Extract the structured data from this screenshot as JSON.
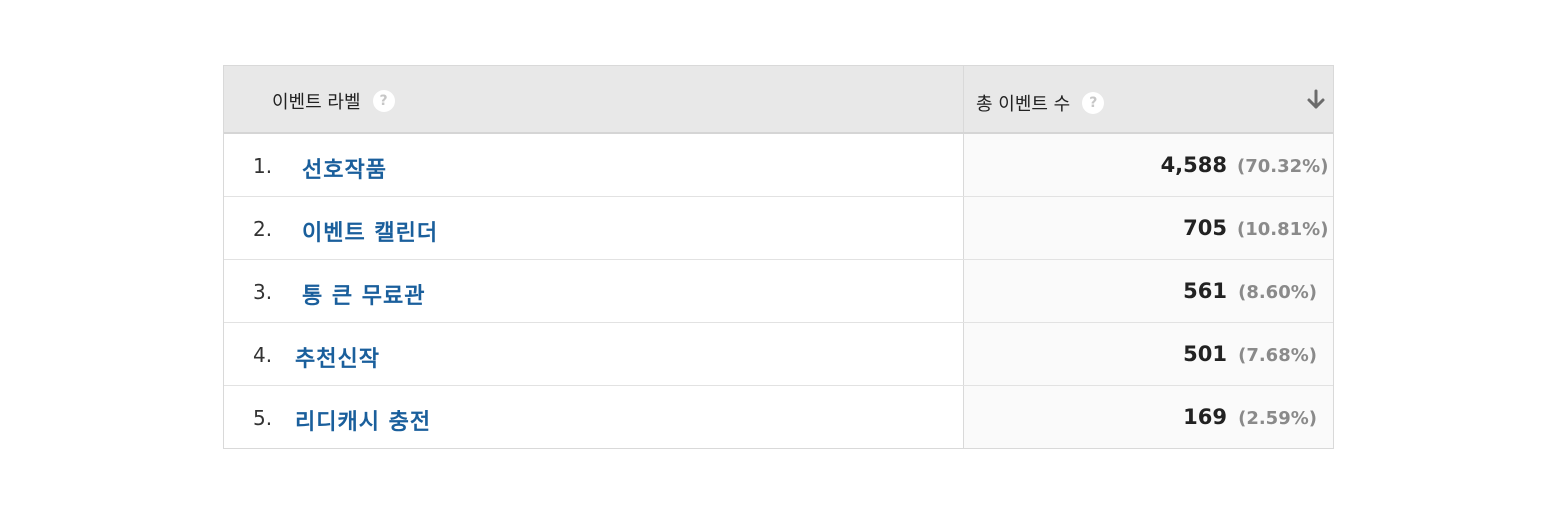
{
  "table": {
    "header": {
      "label_column": "이벤트 라벨",
      "metric_column": "총 이벤트 수",
      "help_glyph": "?",
      "sort_icon": "arrow-down-icon"
    },
    "rows": [
      {
        "index": "1.",
        "label": "선호작품",
        "value": "4,588",
        "pct": "(70.32%)"
      },
      {
        "index": "2.",
        "label": "이벤트 캘린더",
        "value": "705",
        "pct": "(10.81%)"
      },
      {
        "index": "3.",
        "label": "통 큰 무료관",
        "value": "561",
        "pct": "(8.60%)"
      },
      {
        "index": "4.",
        "label": "추천신작",
        "value": "501",
        "pct": "(7.68%)"
      },
      {
        "index": "5.",
        "label": "리디캐시 충전",
        "value": "169",
        "pct": "(2.59%)"
      }
    ]
  },
  "colors": {
    "link": "#1a5f9c",
    "header_bg": "#e8e8e8",
    "metric_bg": "#fafafa",
    "pct_text": "#8a8a8a"
  }
}
